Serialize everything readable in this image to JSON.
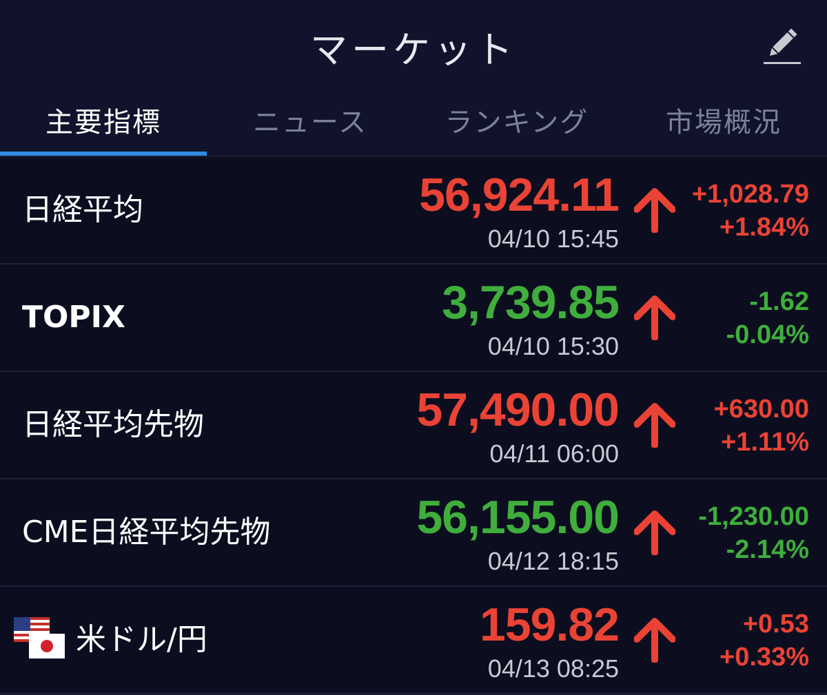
{
  "header": {
    "title": "マーケット",
    "edit_icon": "pencil-icon"
  },
  "tabs": [
    {
      "label": "主要指標",
      "active": true
    },
    {
      "label": "ニュース",
      "active": false
    },
    {
      "label": "ランキング",
      "active": false
    },
    {
      "label": "市場概況",
      "active": false
    }
  ],
  "colors": {
    "up": "#ea4335",
    "down": "#3fae3c",
    "accent": "#2f8de4",
    "background": "#0c0e22"
  },
  "quotes": [
    {
      "name": "日経平均",
      "price": "56,924.11",
      "time": "04/10 15:45",
      "change": "+1,028.79",
      "change_pct": "+1.84%",
      "direction": "up",
      "arrow_icon": "arrow-up-icon"
    },
    {
      "name": "TOPIX",
      "price": "3,739.85",
      "time": "04/10 15:30",
      "change": "-1.62",
      "change_pct": "-0.04%",
      "direction": "down",
      "arrow_icon": "arrow-up-icon"
    },
    {
      "name": "日経平均先物",
      "price": "57,490.00",
      "time": "04/11 06:00",
      "change": "+630.00",
      "change_pct": "+1.11%",
      "direction": "up",
      "arrow_icon": "arrow-up-icon"
    },
    {
      "name": "CME日経平均先物",
      "price": "56,155.00",
      "time": "04/12 18:15",
      "change": "-1,230.00",
      "change_pct": "-2.14%",
      "direction": "down",
      "arrow_icon": "arrow-up-icon"
    },
    {
      "name": "米ドル/円",
      "price": "159.82",
      "time": "04/13 08:25",
      "change": "+0.53",
      "change_pct": "+0.33%",
      "direction": "up",
      "arrow_icon": "arrow-up-icon",
      "flags": [
        "us-flag-icon",
        "japan-flag-icon"
      ]
    }
  ]
}
